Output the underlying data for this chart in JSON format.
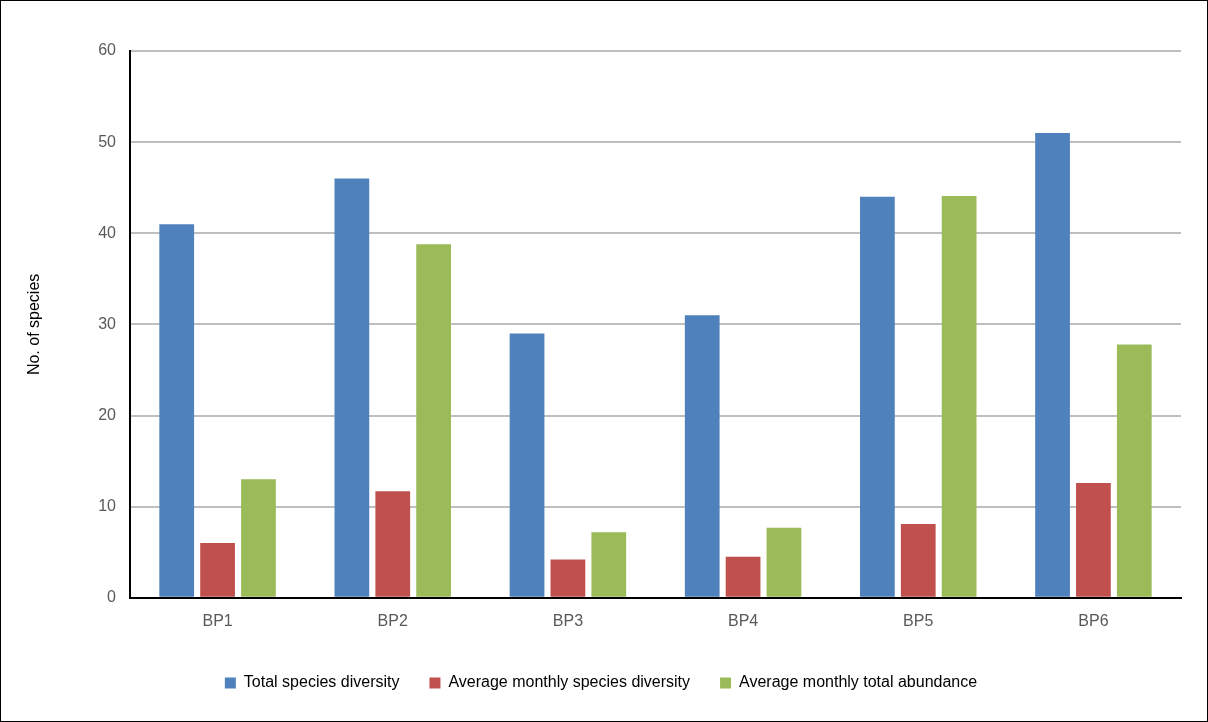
{
  "chart_data": {
    "type": "bar",
    "ylabel": "No. of species",
    "categories": [
      "BP1",
      "BP2",
      "BP3",
      "BP4",
      "BP5",
      "BP6"
    ],
    "series": [
      {
        "name": "Total species diversity",
        "color": "#4f81bd",
        "values": [
          41,
          46,
          29,
          31,
          44,
          51
        ]
      },
      {
        "name": "Average monthly species diversity",
        "color": "#c0504d",
        "values": [
          6.0,
          11.7,
          4.2,
          4.5,
          8.1,
          12.6
        ]
      },
      {
        "name": "Average monthly total abundance",
        "color": "#9bbb59",
        "values": [
          13.0,
          38.8,
          7.2,
          7.7,
          44.1,
          27.8
        ]
      }
    ],
    "ylim": [
      0,
      60
    ],
    "yticks": [
      0,
      10,
      20,
      30,
      40,
      50,
      60
    ],
    "grid": "y",
    "legend": "bottom"
  }
}
